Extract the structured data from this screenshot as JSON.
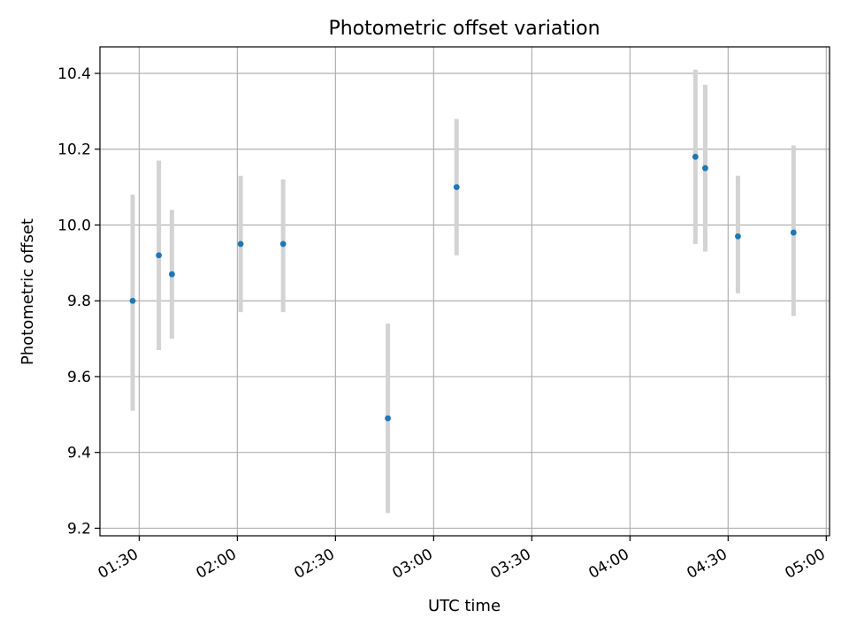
{
  "chart_data": {
    "type": "scatter",
    "title": "Photometric offset variation",
    "xlabel": "UTC time",
    "ylabel": "Photometric offset",
    "xlim": [
      "01:18",
      "05:01"
    ],
    "ylim": [
      9.18,
      10.47
    ],
    "x_ticks": [
      "01:30",
      "02:00",
      "02:30",
      "03:00",
      "03:30",
      "04:00",
      "04:30",
      "05:00"
    ],
    "y_ticks": [
      "9.2",
      "9.4",
      "9.6",
      "9.8",
      "10.0",
      "10.2",
      "10.4"
    ],
    "grid": true,
    "marker_color": "#1f77b4",
    "errorbar_color": "#d3d3d3",
    "points": [
      {
        "time": "01:28",
        "y": 9.8,
        "low": 9.51,
        "high": 10.08
      },
      {
        "time": "01:36",
        "y": 9.92,
        "low": 9.67,
        "high": 10.17
      },
      {
        "time": "01:40",
        "y": 9.87,
        "low": 9.7,
        "high": 10.04
      },
      {
        "time": "02:01",
        "y": 9.95,
        "low": 9.77,
        "high": 10.13
      },
      {
        "time": "02:14",
        "y": 9.95,
        "low": 9.77,
        "high": 10.12
      },
      {
        "time": "02:46",
        "y": 9.49,
        "low": 9.24,
        "high": 9.74
      },
      {
        "time": "03:07",
        "y": 10.1,
        "low": 9.92,
        "high": 10.28
      },
      {
        "time": "04:20",
        "y": 10.18,
        "low": 9.95,
        "high": 10.41
      },
      {
        "time": "04:23",
        "y": 10.15,
        "low": 9.93,
        "high": 10.37
      },
      {
        "time": "04:33",
        "y": 9.97,
        "low": 9.82,
        "high": 10.13
      },
      {
        "time": "04:50",
        "y": 9.98,
        "low": 9.76,
        "high": 10.21
      }
    ]
  }
}
